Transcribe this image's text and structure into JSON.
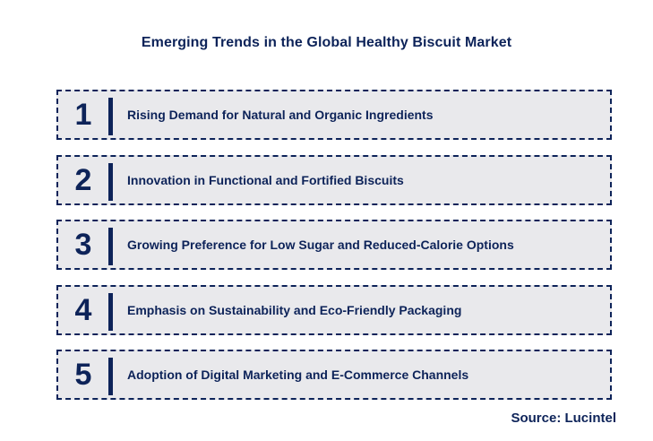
{
  "title": "Emerging Trends in the Global Healthy Biscuit Market",
  "items": [
    {
      "number": "1",
      "label": "Rising Demand for Natural and Organic Ingredients"
    },
    {
      "number": "2",
      "label": "Innovation in Functional and Fortified Biscuits"
    },
    {
      "number": "3",
      "label": "Growing Preference for Low Sugar and Reduced-Calorie Options"
    },
    {
      "number": "4",
      "label": "Emphasis on Sustainability and Eco-Friendly Packaging"
    },
    {
      "number": "5",
      "label": "Adoption of Digital Marketing and E-Commerce Channels"
    }
  ],
  "source": "Source: Lucintel",
  "colors": {
    "navy": "#0d2359",
    "row_background": "#e9e9ec",
    "page_background": "#ffffff"
  }
}
